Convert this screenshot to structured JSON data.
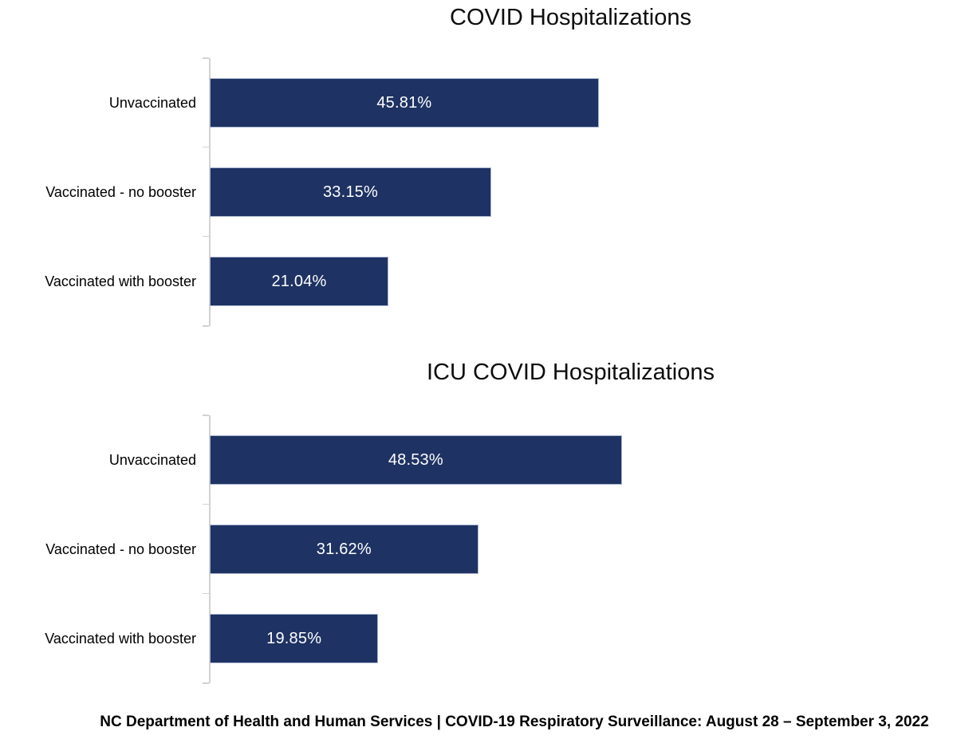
{
  "colors": {
    "bar_fill": "#1E3263",
    "bar_border": "#A9B6D2",
    "axis": "#D2D2D2",
    "title_text": "#0D0D0D",
    "label_text": "#000000",
    "value_text": "#FFFFFF"
  },
  "chart_data": [
    {
      "type": "bar",
      "orientation": "horizontal",
      "title": "COVID Hospitalizations",
      "categories": [
        "Unvaccinated",
        "Vaccinated - no booster",
        "Vaccinated with booster"
      ],
      "values": [
        45.81,
        33.15,
        21.04
      ],
      "value_labels": [
        "45.81%",
        "33.15%",
        "21.04%"
      ],
      "xlabel": "",
      "ylabel": "",
      "xlim": [
        0,
        85
      ],
      "grid": false,
      "legend": "none",
      "value_label_position": "center-inside"
    },
    {
      "type": "bar",
      "orientation": "horizontal",
      "title": "ICU COVID Hospitalizations",
      "categories": [
        "Unvaccinated",
        "Vaccinated - no booster",
        "Vaccinated with booster"
      ],
      "values": [
        48.53,
        31.62,
        19.85
      ],
      "value_labels": [
        "48.53%",
        "31.62%",
        "19.85%"
      ],
      "xlabel": "",
      "ylabel": "",
      "xlim": [
        0,
        85
      ],
      "grid": false,
      "legend": "none",
      "value_label_position": "center-inside"
    }
  ],
  "footer": {
    "text": "NC Department of Health and Human Services | COVID-19 Respiratory Surveillance: August 28 – September 3, 2022"
  }
}
